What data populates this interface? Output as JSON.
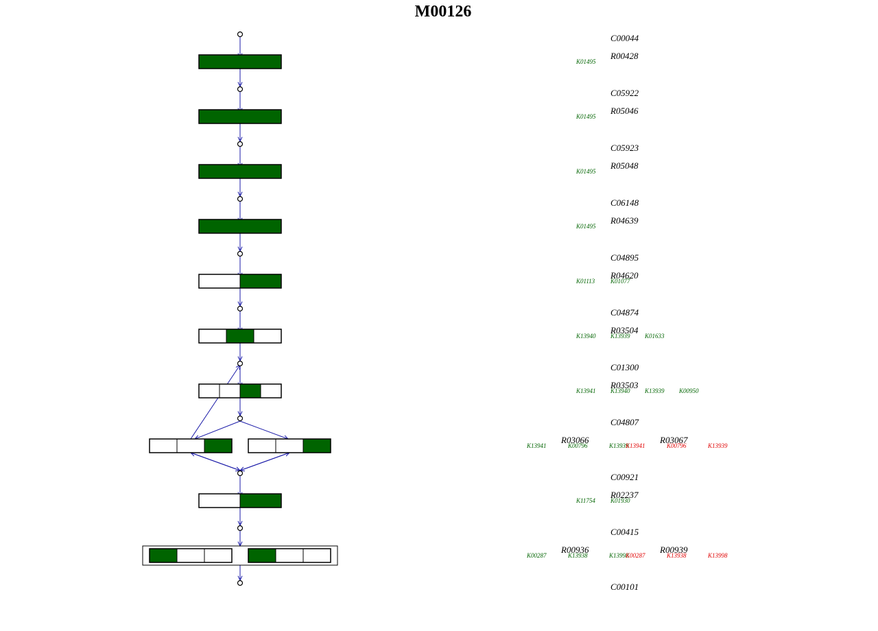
{
  "title": "M00126",
  "colors": {
    "present": "#006400",
    "absent": "#e00000",
    "edge": "#1a1aa8",
    "box_border": "#000000",
    "empty": "#ffffff"
  },
  "compounds": [
    "C00044",
    "C05922",
    "C05923",
    "C06148",
    "C04895",
    "C04874",
    "C01300",
    "C04807",
    "C00921",
    "C00415",
    "C00101"
  ],
  "steps": [
    {
      "reactions": [
        {
          "id": "R00428",
          "kos": [
            {
              "id": "K01495",
              "present": true
            }
          ]
        }
      ],
      "boxes": [
        {
          "cells": [
            true
          ]
        }
      ]
    },
    {
      "reactions": [
        {
          "id": "R05046",
          "kos": [
            {
              "id": "K01495",
              "present": true
            }
          ]
        }
      ],
      "boxes": [
        {
          "cells": [
            true
          ]
        }
      ]
    },
    {
      "reactions": [
        {
          "id": "R05048",
          "kos": [
            {
              "id": "K01495",
              "present": true
            }
          ]
        }
      ],
      "boxes": [
        {
          "cells": [
            true
          ]
        }
      ]
    },
    {
      "reactions": [
        {
          "id": "R04639",
          "kos": [
            {
              "id": "K01495",
              "present": true
            }
          ]
        }
      ],
      "boxes": [
        {
          "cells": [
            true
          ]
        }
      ]
    },
    {
      "reactions": [
        {
          "id": "R04620",
          "kos": [
            {
              "id": "K01113",
              "present": true
            },
            {
              "id": "K01077",
              "present": true
            }
          ]
        }
      ],
      "boxes": [
        {
          "cells": [
            false,
            true
          ]
        }
      ]
    },
    {
      "reactions": [
        {
          "id": "R03504",
          "kos": [
            {
              "id": "K13940",
              "present": true
            },
            {
              "id": "K13939",
              "present": true
            },
            {
              "id": "K01633",
              "present": true
            }
          ]
        }
      ],
      "boxes": [
        {
          "cells": [
            false,
            true,
            false
          ]
        }
      ]
    },
    {
      "reactions": [
        {
          "id": "R03503",
          "kos": [
            {
              "id": "K13941",
              "present": true
            },
            {
              "id": "K13940",
              "present": true
            },
            {
              "id": "K13939",
              "present": true
            },
            {
              "id": "K00950",
              "present": true
            }
          ]
        }
      ],
      "boxes": [
        {
          "cells": [
            false,
            false,
            true,
            false
          ]
        }
      ]
    },
    {
      "reactions": [
        {
          "id": "R03066",
          "kos": [
            {
              "id": "K13941",
              "present": true
            },
            {
              "id": "K00796",
              "present": true
            },
            {
              "id": "K13939",
              "present": true
            }
          ]
        },
        {
          "id": "R03067",
          "kos": [
            {
              "id": "K13941",
              "present": false
            },
            {
              "id": "K00796",
              "present": false
            },
            {
              "id": "K13939",
              "present": false
            }
          ]
        }
      ],
      "boxes": [
        {
          "cells": [
            false,
            false,
            true
          ]
        },
        {
          "cells": [
            false,
            false,
            true
          ]
        }
      ]
    },
    {
      "reactions": [
        {
          "id": "R02237",
          "kos": [
            {
              "id": "K11754",
              "present": true
            },
            {
              "id": "K01930",
              "present": true
            }
          ]
        }
      ],
      "boxes": [
        {
          "cells": [
            false,
            true
          ]
        }
      ]
    },
    {
      "reactions": [
        {
          "id": "R00936",
          "kos": [
            {
              "id": "K00287",
              "present": true
            },
            {
              "id": "K13938",
              "present": true
            },
            {
              "id": "K13998",
              "present": true
            }
          ]
        },
        {
          "id": "R00939",
          "kos": [
            {
              "id": "K00287",
              "present": false
            },
            {
              "id": "K13938",
              "present": false
            },
            {
              "id": "K13998",
              "present": false
            }
          ]
        }
      ],
      "boxes": [
        {
          "cells": [
            true,
            false,
            false
          ]
        },
        {
          "cells": [
            true,
            false,
            false
          ]
        }
      ],
      "enclosed": true
    }
  ]
}
